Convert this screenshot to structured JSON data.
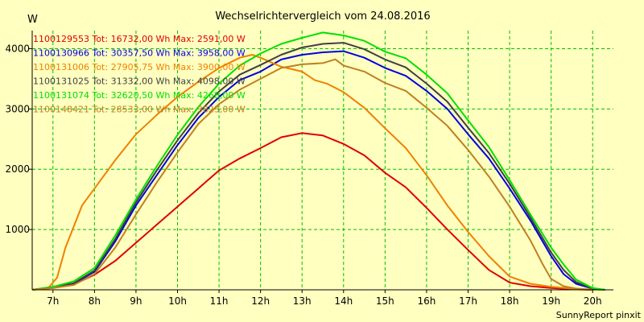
{
  "chart_data": {
    "type": "line",
    "title": "Wechselrichtervergleich vom 24.08.2016",
    "ylabel": "W",
    "footer": "SunnyReport pinxit",
    "xlim": [
      6.5,
      20.5
    ],
    "ylim": [
      0,
      4300
    ],
    "x_ticks": [
      {
        "value": 7,
        "label": "7h"
      },
      {
        "value": 8,
        "label": "8h"
      },
      {
        "value": 9,
        "label": "9h"
      },
      {
        "value": 10,
        "label": "10h"
      },
      {
        "value": 11,
        "label": "11h"
      },
      {
        "value": 12,
        "label": "12h"
      },
      {
        "value": 13,
        "label": "13h"
      },
      {
        "value": 14,
        "label": "14h"
      },
      {
        "value": 15,
        "label": "15h"
      },
      {
        "value": 16,
        "label": "16h"
      },
      {
        "value": 17,
        "label": "17h"
      },
      {
        "value": 18,
        "label": "18h"
      },
      {
        "value": 19,
        "label": "19h"
      },
      {
        "value": 20,
        "label": "20h"
      }
    ],
    "y_ticks": [
      {
        "value": 1000,
        "label": "1000"
      },
      {
        "value": 2000,
        "label": "2000"
      },
      {
        "value": 3000,
        "label": "3000"
      },
      {
        "value": 4000,
        "label": "4000"
      }
    ],
    "grid": true,
    "colors": {
      "background": "#ffffc0",
      "grid": "#00c000",
      "axis": "#000000"
    },
    "series": [
      {
        "name": "1100129553",
        "color": "#e00000",
        "legend": "1100129553 Tot: 16732,00 Wh Max: 2591,00 W",
        "points": [
          [
            6.5,
            0
          ],
          [
            7,
            30
          ],
          [
            7.5,
            90
          ],
          [
            8,
            250
          ],
          [
            8.5,
            480
          ],
          [
            9,
            780
          ],
          [
            9.5,
            1080
          ],
          [
            10,
            1380
          ],
          [
            10.5,
            1680
          ],
          [
            11,
            1980
          ],
          [
            11.5,
            2180
          ],
          [
            12,
            2350
          ],
          [
            12.5,
            2530
          ],
          [
            13,
            2600
          ],
          [
            13.5,
            2560
          ],
          [
            14,
            2420
          ],
          [
            14.5,
            2230
          ],
          [
            15,
            1940
          ],
          [
            15.5,
            1700
          ],
          [
            16,
            1360
          ],
          [
            16.5,
            1000
          ],
          [
            17,
            660
          ],
          [
            17.5,
            330
          ],
          [
            18,
            120
          ],
          [
            18.5,
            60
          ],
          [
            19,
            30
          ],
          [
            19.5,
            10
          ],
          [
            20,
            0
          ]
        ]
      },
      {
        "name": "1100130966",
        "color": "#0000e0",
        "legend": "1100130966 Tot: 30357,50 Wh Max: 3958,00 W",
        "points": [
          [
            6.5,
            0
          ],
          [
            7,
            40
          ],
          [
            7.5,
            100
          ],
          [
            8,
            300
          ],
          [
            8.5,
            800
          ],
          [
            9,
            1400
          ],
          [
            9.5,
            1900
          ],
          [
            10,
            2400
          ],
          [
            10.5,
            2850
          ],
          [
            11,
            3200
          ],
          [
            11.5,
            3480
          ],
          [
            12,
            3620
          ],
          [
            12.5,
            3820
          ],
          [
            13,
            3900
          ],
          [
            13.5,
            3940
          ],
          [
            14,
            3958
          ],
          [
            14.5,
            3850
          ],
          [
            15,
            3680
          ],
          [
            15.5,
            3550
          ],
          [
            16,
            3300
          ],
          [
            16.5,
            3000
          ],
          [
            17,
            2580
          ],
          [
            17.5,
            2180
          ],
          [
            18,
            1680
          ],
          [
            18.5,
            1150
          ],
          [
            19,
            560
          ],
          [
            19.3,
            260
          ],
          [
            19.6,
            100
          ],
          [
            20,
            20
          ],
          [
            20.3,
            0
          ]
        ]
      },
      {
        "name": "1100131006",
        "color": "#f08000",
        "legend": "1100131006 Tot: 27905,75 Wh Max: 3900,00 W",
        "points": [
          [
            6.5,
            0
          ],
          [
            6.9,
            40
          ],
          [
            7.1,
            200
          ],
          [
            7.3,
            700
          ],
          [
            7.7,
            1400
          ],
          [
            8,
            1680
          ],
          [
            8.5,
            2150
          ],
          [
            9,
            2580
          ],
          [
            9.5,
            2900
          ],
          [
            10,
            3200
          ],
          [
            10.5,
            3450
          ],
          [
            11,
            3680
          ],
          [
            11.5,
            3850
          ],
          [
            11.8,
            3900
          ],
          [
            12,
            3850
          ],
          [
            12.5,
            3700
          ],
          [
            13,
            3620
          ],
          [
            13.3,
            3480
          ],
          [
            13.6,
            3420
          ],
          [
            14,
            3280
          ],
          [
            14.5,
            3020
          ],
          [
            15,
            2680
          ],
          [
            15.5,
            2350
          ],
          [
            16,
            1900
          ],
          [
            16.5,
            1400
          ],
          [
            17,
            960
          ],
          [
            17.5,
            560
          ],
          [
            18,
            220
          ],
          [
            18.5,
            100
          ],
          [
            19,
            50
          ],
          [
            19.5,
            20
          ],
          [
            20,
            5
          ],
          [
            20.3,
            0
          ]
        ]
      },
      {
        "name": "1100131025",
        "color": "#404040",
        "legend": "1100131025 Tot: 31332,00 Wh Max: 4098,00 W",
        "points": [
          [
            6.5,
            0
          ],
          [
            7,
            45
          ],
          [
            7.5,
            110
          ],
          [
            8,
            320
          ],
          [
            8.5,
            840
          ],
          [
            9,
            1450
          ],
          [
            9.5,
            1980
          ],
          [
            10,
            2480
          ],
          [
            10.5,
            2930
          ],
          [
            11,
            3290
          ],
          [
            11.5,
            3570
          ],
          [
            12,
            3730
          ],
          [
            12.5,
            3900
          ],
          [
            13,
            4020
          ],
          [
            13.5,
            4080
          ],
          [
            14,
            4098
          ],
          [
            14.5,
            3990
          ],
          [
            15,
            3820
          ],
          [
            15.5,
            3690
          ],
          [
            16,
            3420
          ],
          [
            16.5,
            3120
          ],
          [
            17,
            2690
          ],
          [
            17.5,
            2270
          ],
          [
            18,
            1760
          ],
          [
            18.5,
            1200
          ],
          [
            19,
            620
          ],
          [
            19.3,
            330
          ],
          [
            19.6,
            130
          ],
          [
            20,
            20
          ],
          [
            20.3,
            0
          ]
        ]
      },
      {
        "name": "1100131074",
        "color": "#00e000",
        "legend": "1100131074 Tot: 32620,50 Wh Max: 4268,00 W",
        "points": [
          [
            6.5,
            0
          ],
          [
            7,
            50
          ],
          [
            7.5,
            140
          ],
          [
            8,
            360
          ],
          [
            8.5,
            900
          ],
          [
            9,
            1500
          ],
          [
            9.5,
            2050
          ],
          [
            10,
            2570
          ],
          [
            10.5,
            3030
          ],
          [
            11,
            3420
          ],
          [
            11.5,
            3720
          ],
          [
            12,
            3920
          ],
          [
            12.5,
            4080
          ],
          [
            13,
            4180
          ],
          [
            13.5,
            4268
          ],
          [
            14,
            4220
          ],
          [
            14.5,
            4130
          ],
          [
            15,
            3950
          ],
          [
            15.5,
            3840
          ],
          [
            16,
            3570
          ],
          [
            16.5,
            3260
          ],
          [
            17,
            2810
          ],
          [
            17.5,
            2370
          ],
          [
            18,
            1820
          ],
          [
            18.5,
            1250
          ],
          [
            19,
            700
          ],
          [
            19.3,
            420
          ],
          [
            19.6,
            170
          ],
          [
            20,
            30
          ],
          [
            20.3,
            0
          ]
        ]
      },
      {
        "name": "1100148421",
        "color": "#c08020",
        "legend": "1100148421 Tot: 28533,00 Wh Max: 3823,00 W",
        "points": [
          [
            6.5,
            0
          ],
          [
            7,
            30
          ],
          [
            7.5,
            80
          ],
          [
            8,
            260
          ],
          [
            8.5,
            700
          ],
          [
            9,
            1250
          ],
          [
            9.5,
            1780
          ],
          [
            10,
            2280
          ],
          [
            10.5,
            2750
          ],
          [
            11,
            3080
          ],
          [
            11.5,
            3320
          ],
          [
            12,
            3500
          ],
          [
            12.5,
            3680
          ],
          [
            13,
            3740
          ],
          [
            13.5,
            3760
          ],
          [
            13.8,
            3823
          ],
          [
            14,
            3720
          ],
          [
            14.5,
            3620
          ],
          [
            15,
            3430
          ],
          [
            15.5,
            3300
          ],
          [
            16,
            3020
          ],
          [
            16.5,
            2720
          ],
          [
            17,
            2320
          ],
          [
            17.5,
            1880
          ],
          [
            18,
            1380
          ],
          [
            18.5,
            820
          ],
          [
            18.8,
            420
          ],
          [
            19,
            180
          ],
          [
            19.3,
            60
          ],
          [
            19.6,
            20
          ],
          [
            20,
            0
          ]
        ]
      }
    ]
  }
}
